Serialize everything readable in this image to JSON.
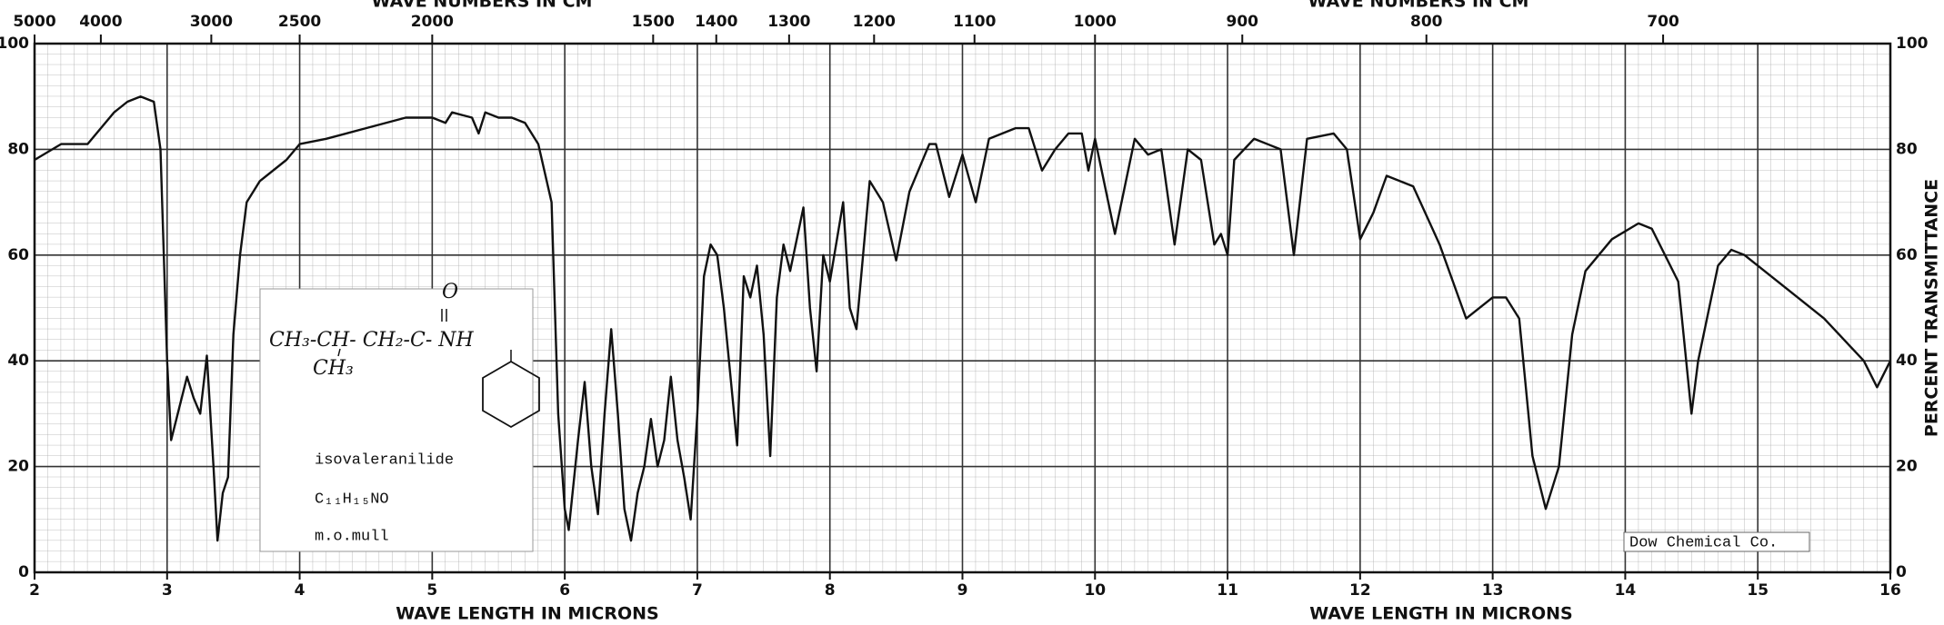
{
  "chart_data": {
    "type": "line",
    "x_label": "WAVE LENGTH IN MICRONS",
    "x2_label": "WAVE NUMBERS IN CM",
    "y_label": "PERCENT TRANSMITTANCE",
    "xlim": [
      2,
      16
    ],
    "xticks": [
      2,
      3,
      4,
      5,
      6,
      7,
      8,
      9,
      10,
      11,
      12,
      13,
      14,
      15,
      16
    ],
    "x2ticks": [
      5000,
      4000,
      3000,
      2500,
      2000,
      1500,
      1400,
      1300,
      1200,
      1100,
      1000,
      900,
      800,
      700
    ],
    "ylim": [
      0,
      100
    ],
    "yticks": [
      0,
      20,
      40,
      60,
      80,
      100
    ],
    "grid": true,
    "x": [
      2.0,
      2.2,
      2.4,
      2.5,
      2.6,
      2.7,
      2.8,
      2.9,
      2.95,
      3.0,
      3.03,
      3.1,
      3.15,
      3.2,
      3.25,
      3.3,
      3.35,
      3.38,
      3.42,
      3.46,
      3.5,
      3.55,
      3.6,
      3.7,
      3.9,
      4.0,
      4.2,
      4.5,
      4.8,
      5.0,
      5.1,
      5.15,
      5.3,
      5.35,
      5.4,
      5.5,
      5.6,
      5.7,
      5.8,
      5.9,
      5.95,
      6.0,
      6.03,
      6.1,
      6.15,
      6.2,
      6.25,
      6.3,
      6.35,
      6.4,
      6.45,
      6.5,
      6.55,
      6.6,
      6.65,
      6.7,
      6.75,
      6.8,
      6.85,
      6.9,
      6.95,
      7.0,
      7.05,
      7.1,
      7.15,
      7.2,
      7.3,
      7.35,
      7.4,
      7.45,
      7.5,
      7.55,
      7.6,
      7.65,
      7.7,
      7.8,
      7.85,
      7.9,
      7.95,
      8.0,
      8.1,
      8.15,
      8.2,
      8.3,
      8.4,
      8.5,
      8.6,
      8.75,
      8.8,
      8.9,
      9.0,
      9.1,
      9.2,
      9.4,
      9.5,
      9.6,
      9.7,
      9.8,
      9.9,
      9.95,
      10.0,
      10.1,
      10.15,
      10.3,
      10.4,
      10.5,
      10.6,
      10.7,
      10.8,
      10.9,
      10.95,
      11.0,
      11.05,
      11.2,
      11.4,
      11.5,
      11.6,
      11.8,
      11.9,
      12.0,
      12.1,
      12.2,
      12.4,
      12.6,
      12.8,
      13.0,
      13.1,
      13.2,
      13.3,
      13.4,
      13.5,
      13.6,
      13.7,
      13.9,
      14.1,
      14.2,
      14.4,
      14.5,
      14.55,
      14.7,
      14.8,
      14.9,
      15.2,
      15.5,
      15.8,
      15.9,
      16.0
    ],
    "series": [
      {
        "color": "#111111",
        "values": [
          78,
          81,
          81,
          84,
          87,
          89,
          90,
          89,
          80,
          40,
          25,
          32,
          37,
          33,
          30,
          41,
          20,
          6,
          15,
          18,
          45,
          60,
          70,
          74,
          78,
          81,
          82,
          84,
          86,
          86,
          85,
          87,
          86,
          83,
          87,
          86,
          86,
          85,
          81,
          70,
          30,
          12,
          8,
          25,
          36,
          20,
          11,
          30,
          46,
          30,
          12,
          6,
          15,
          20,
          29,
          20,
          25,
          37,
          25,
          18,
          10,
          30,
          56,
          62,
          60,
          50,
          24,
          56,
          52,
          58,
          45,
          22,
          52,
          62,
          57,
          69,
          50,
          38,
          60,
          55,
          70,
          50,
          46,
          74,
          70,
          59,
          72,
          81,
          81,
          71,
          79,
          70,
          82,
          84,
          84,
          76,
          80,
          83,
          83,
          76,
          82,
          70,
          64,
          82,
          79,
          80,
          62,
          80,
          78,
          62,
          64,
          60,
          78,
          82,
          80,
          60,
          82,
          83,
          80,
          63,
          68,
          75,
          73,
          62,
          48,
          52,
          52,
          48,
          22,
          12,
          20,
          45,
          57,
          63,
          66,
          65,
          55,
          30,
          40,
          58,
          61,
          60,
          54,
          48,
          40,
          35,
          40
        ]
      }
    ],
    "annotations": [
      "CH₃-CH- CH₂-C- NH",
      "CH₃",
      "O",
      "isovaleranilide",
      "C₁₁H₁₅NO",
      "m.o.mull",
      "Dow Chemical Co."
    ]
  }
}
